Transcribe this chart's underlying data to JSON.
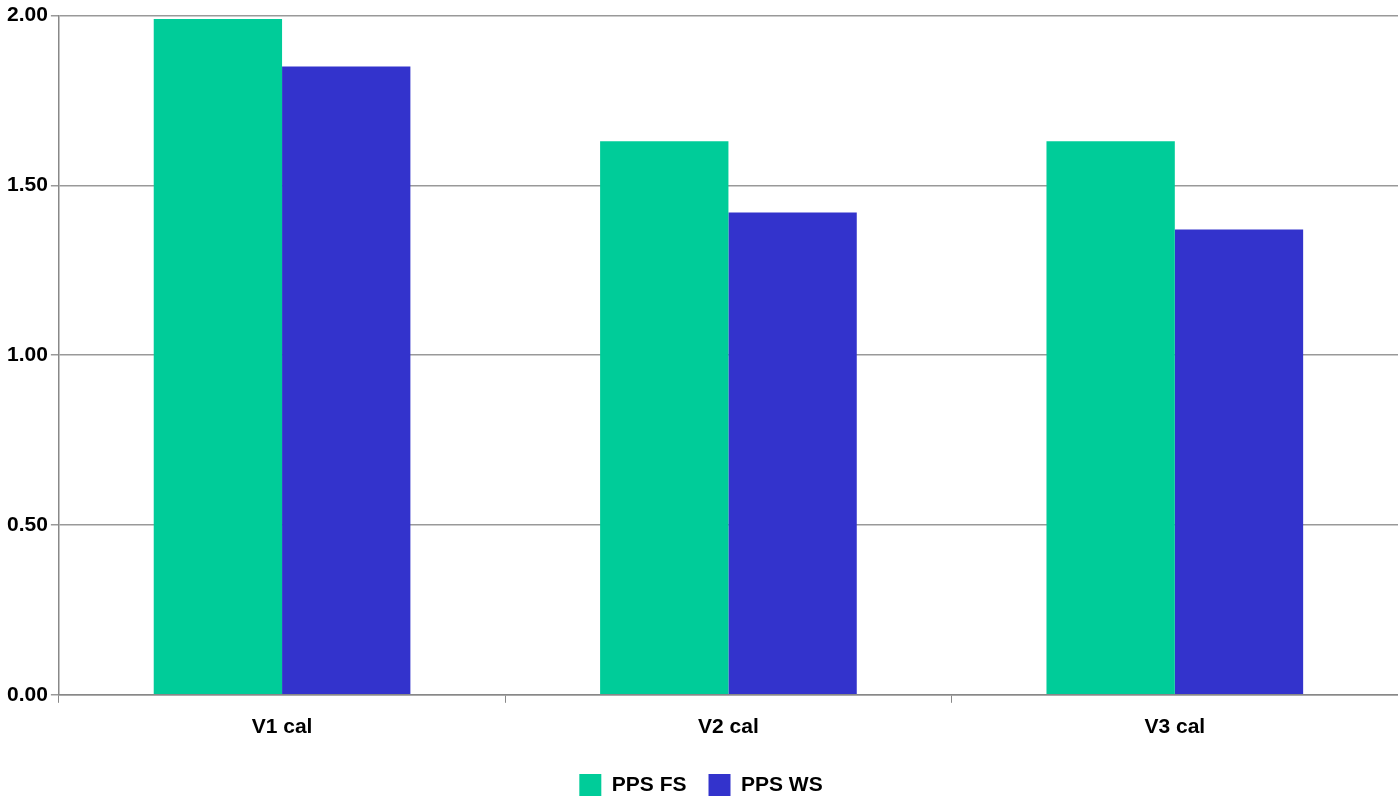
{
  "chart_data": {
    "type": "bar",
    "categories": [
      "V1 cal",
      "V2 cal",
      "V3 cal"
    ],
    "series": [
      {
        "name": "PPS FS",
        "color": "#00cc99",
        "values": [
          1.99,
          1.63,
          1.63
        ]
      },
      {
        "name": "PPS WS",
        "color": "#3333cc",
        "values": [
          1.85,
          1.42,
          1.37
        ]
      }
    ],
    "ylim": [
      0,
      2
    ],
    "yticks": [
      {
        "value": 0,
        "label": "0.00"
      },
      {
        "value": 0.5,
        "label": "0.50"
      },
      {
        "value": 1,
        "label": "1.00"
      },
      {
        "value": 1.5,
        "label": "1.50"
      },
      {
        "value": 2,
        "label": "2.00"
      }
    ],
    "grid": "y",
    "legend": "bottom"
  }
}
